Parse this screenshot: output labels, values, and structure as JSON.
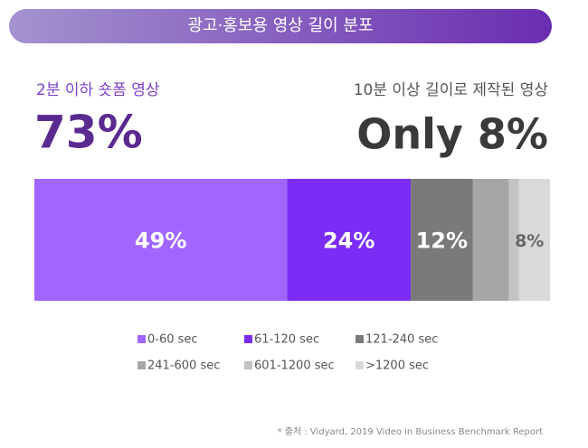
{
  "chart_data": {
    "type": "stacked-bar",
    "title": "광고·홍보용 영상 길이 분포",
    "headline_left": {
      "text": "2분 이하 숏폼 영상",
      "figure": "73%"
    },
    "headline_right": {
      "text": "10분 이상 길이로 제작된 영상",
      "figure": "Only 8%"
    },
    "xlim": [
      0,
      100
    ],
    "series": [
      {
        "name": "0-60 sec",
        "color": "#a066ff",
        "values": [
          49
        ],
        "value_labels": [
          "49%"
        ]
      },
      {
        "name": "61-120 sec",
        "color": "#7b2cf5",
        "values": [
          24
        ],
        "value_labels": [
          "24%"
        ]
      },
      {
        "name": "121-240 sec",
        "color": "#7a7a7a",
        "values": [
          12
        ],
        "value_labels": [
          "12%"
        ]
      },
      {
        "name": "241-600 sec",
        "color": "#a6a6a6",
        "values": [
          7
        ]
      },
      {
        "name": "601-1200 sec",
        "color": "#c4c4c4",
        "values": [
          2
        ]
      },
      {
        "name": ">1200 sec",
        "color": "#d9d9d9",
        "values": [
          6
        ]
      }
    ],
    "annotation": "8%",
    "source": "* 출처 : Vidyard, 2019 Video in Business Benchmark Report"
  }
}
